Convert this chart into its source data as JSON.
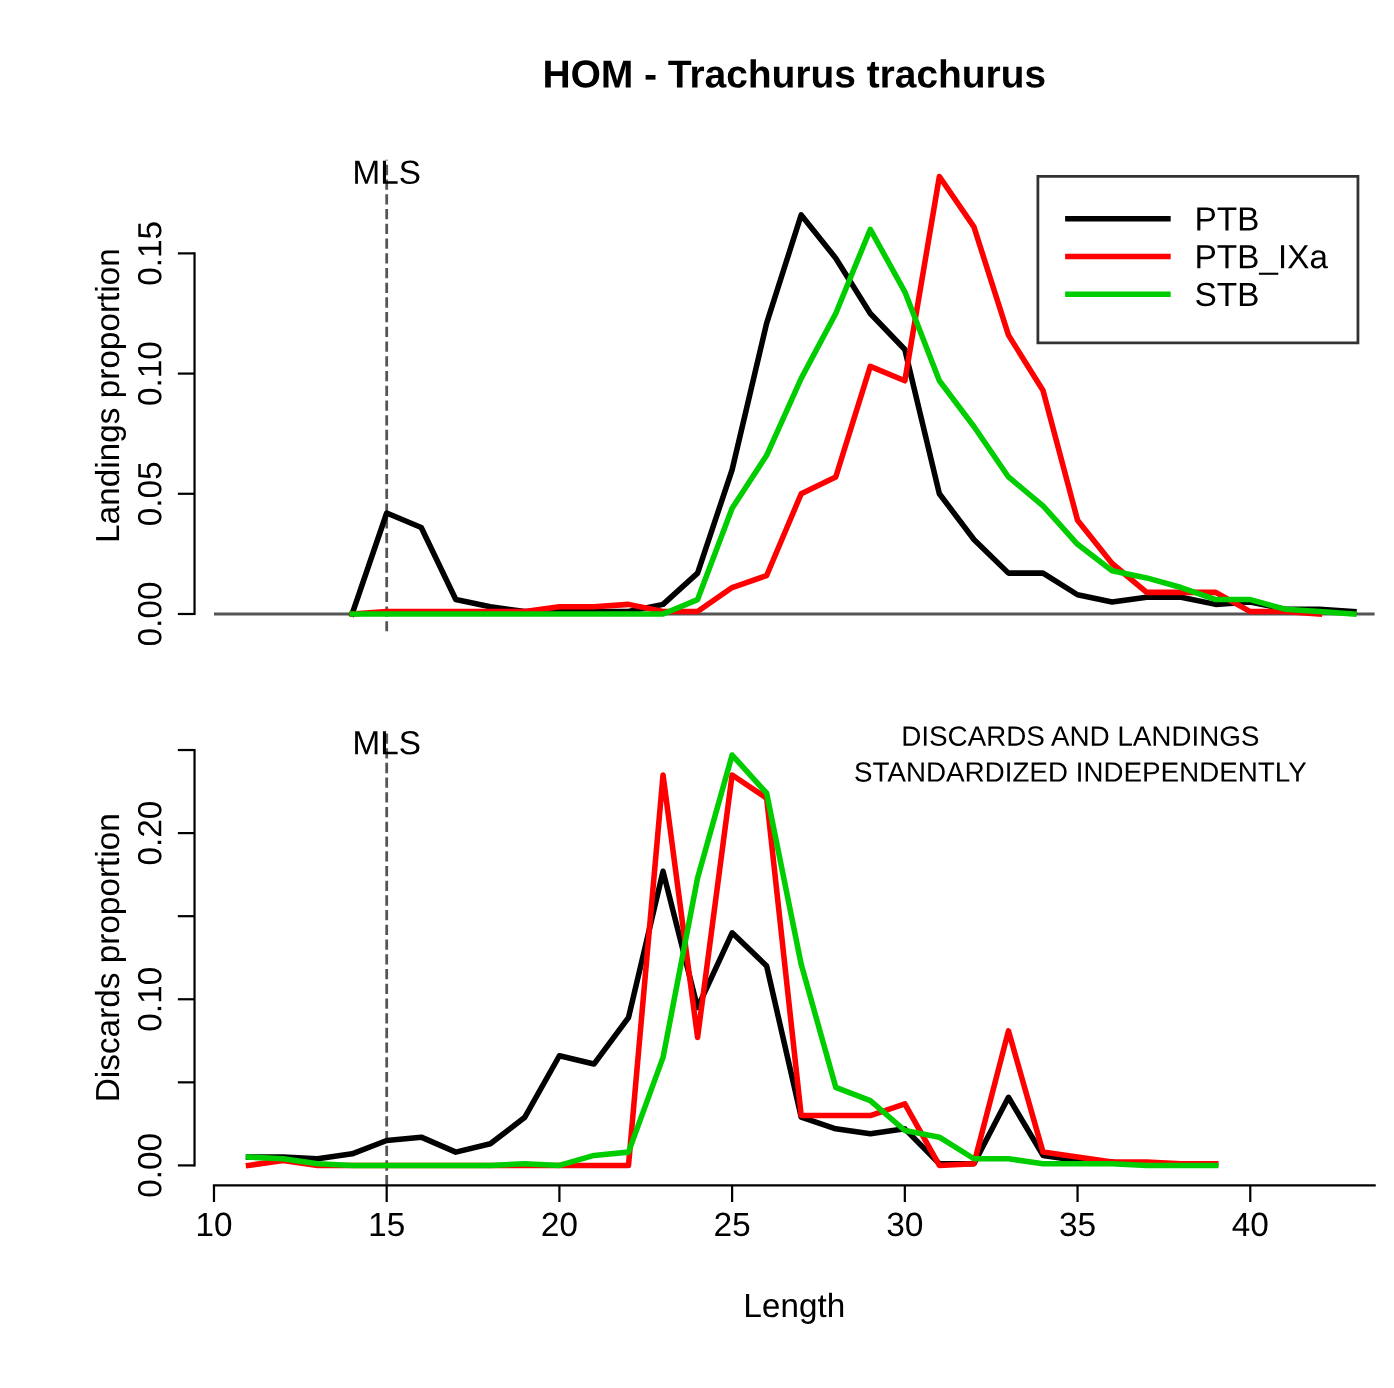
{
  "chart_data": [
    {
      "type": "line",
      "title": "HOM - Trachurus trachurus",
      "ylabel": "Landings proportion",
      "xlim": [
        10,
        43.6
      ],
      "ylim": [
        -0.0073,
        0.189
      ],
      "yticks": [
        {
          "value": 0,
          "label": "0.00"
        },
        {
          "value": 0.05,
          "label": "0.05"
        },
        {
          "value": 0.1,
          "label": "0.10"
        },
        {
          "value": 0.15,
          "label": "0.15"
        }
      ],
      "tick_labels": "y",
      "legend": "top right",
      "ref_lines": [
        {
          "axis": "x",
          "value": 15,
          "label": "MLS",
          "line_style": "dashed",
          "color": "#555555"
        },
        {
          "axis": "y",
          "value": 0,
          "color": "#555555",
          "line_style": "solid"
        }
      ],
      "series": [
        {
          "name": "PTB",
          "color": "#000000",
          "x": [
            14,
            15,
            16,
            17,
            18,
            19,
            20,
            21,
            22,
            23,
            24,
            25,
            26,
            27,
            28,
            29,
            30,
            31,
            32,
            33,
            34,
            35,
            36,
            37,
            38,
            39,
            40,
            41,
            42,
            43
          ],
          "values": [
            0,
            0.042,
            0.036,
            0.006,
            0.003,
            0.001,
            0.001,
            0.001,
            0.001,
            0.004,
            0.017,
            0.06,
            0.121,
            0.166,
            0.148,
            0.125,
            0.11,
            0.05,
            0.031,
            0.017,
            0.017,
            0.008,
            0.005,
            0.007,
            0.007,
            0.004,
            0.005,
            0.002,
            0.002,
            0.001
          ]
        },
        {
          "name": "PTB_IXa",
          "color": "#ff0000",
          "x": [
            14,
            15,
            16,
            17,
            18,
            19,
            20,
            21,
            22,
            23,
            24,
            25,
            26,
            27,
            28,
            29,
            30,
            31,
            32,
            33,
            34,
            35,
            36,
            37,
            38,
            39,
            40,
            41,
            42
          ],
          "values": [
            0,
            0.001,
            0.001,
            0.001,
            0.001,
            0.001,
            0.003,
            0.003,
            0.004,
            0.001,
            0.001,
            0.011,
            0.016,
            0.05,
            0.057,
            0.103,
            0.097,
            0.182,
            0.161,
            0.116,
            0.093,
            0.039,
            0.021,
            0.009,
            0.009,
            0.009,
            0.001,
            0.001,
            0
          ]
        },
        {
          "name": "STB",
          "color": "#00cd00",
          "x": [
            14,
            15,
            16,
            17,
            18,
            19,
            20,
            21,
            22,
            23,
            24,
            25,
            26,
            27,
            28,
            29,
            30,
            31,
            32,
            33,
            34,
            35,
            36,
            37,
            38,
            39,
            40,
            41,
            42,
            43
          ],
          "values": [
            0,
            0,
            0,
            0,
            0,
            0,
            0,
            0,
            0,
            0,
            0.006,
            0.044,
            0.066,
            0.098,
            0.125,
            0.16,
            0.134,
            0.097,
            0.078,
            0.057,
            0.045,
            0.029,
            0.018,
            0.015,
            0.011,
            0.006,
            0.006,
            0.002,
            0.001,
            0
          ]
        }
      ]
    },
    {
      "type": "line",
      "xlabel": "Length",
      "ylabel": "Discards proportion",
      "xlim": [
        10,
        43.6
      ],
      "xticks": [
        10,
        15,
        20,
        25,
        30,
        35,
        40
      ],
      "ylim": [
        -0.012,
        0.262
      ],
      "yticks": [
        {
          "value": 0,
          "label": "0.00"
        },
        {
          "value": 0.05,
          "label": null
        },
        {
          "value": 0.1,
          "label": "0.10"
        },
        {
          "value": 0.15,
          "label": null
        },
        {
          "value": 0.2,
          "label": "0.20"
        },
        {
          "value": 0.25,
          "label": null
        }
      ],
      "annotations": [
        "DISCARDS AND LANDINGS\nSTANDARDIZED INDEPENDENTLY"
      ],
      "ref_lines": [
        {
          "axis": "x",
          "value": 15,
          "label": "MLS",
          "line_style": "dashed",
          "color": "#555555"
        }
      ],
      "series": [
        {
          "color": "#000000",
          "x": [
            11,
            12,
            13,
            14,
            15,
            16,
            17,
            18,
            19,
            20,
            21,
            22,
            23,
            24,
            25,
            26,
            27,
            28,
            29,
            30,
            31,
            32,
            33,
            34,
            35,
            36
          ],
          "values": [
            0.005,
            0.005,
            0.004,
            0.007,
            0.015,
            0.017,
            0.008,
            0.013,
            0.029,
            0.066,
            0.061,
            0.089,
            0.177,
            0.095,
            0.14,
            0.12,
            0.029,
            0.022,
            0.019,
            0.022,
            0.001,
            0.001,
            0.041,
            0.006,
            0.003,
            0.002
          ]
        },
        {
          "color": "#ff0000",
          "x": [
            11,
            12,
            13,
            14,
            15,
            16,
            17,
            18,
            19,
            20,
            21,
            22,
            23,
            24,
            25,
            26,
            27,
            28,
            29,
            30,
            31,
            32,
            33,
            34,
            35,
            36,
            37,
            38,
            39
          ],
          "values": [
            0,
            0.003,
            0,
            0,
            0,
            0,
            0,
            0,
            0,
            0,
            0,
            0,
            0.235,
            0.077,
            0.235,
            0.221,
            0.03,
            0.03,
            0.03,
            0.037,
            0,
            0.001,
            0.081,
            0.008,
            0.005,
            0.002,
            0.002,
            0.001,
            0.001
          ]
        },
        {
          "color": "#00cd00",
          "x": [
            11,
            12,
            13,
            14,
            15,
            16,
            17,
            18,
            19,
            20,
            21,
            22,
            23,
            24,
            25,
            26,
            27,
            28,
            29,
            30,
            31,
            32,
            33,
            34,
            35,
            36,
            37,
            38,
            39
          ],
          "values": [
            0.005,
            0.004,
            0.001,
            0,
            0,
            0,
            0,
            0,
            0.001,
            0,
            0.006,
            0.008,
            0.065,
            0.173,
            0.247,
            0.224,
            0.121,
            0.047,
            0.039,
            0.021,
            0.017,
            0.004,
            0.004,
            0.001,
            0.001,
            0.001,
            0,
            0,
            0
          ]
        }
      ]
    }
  ]
}
